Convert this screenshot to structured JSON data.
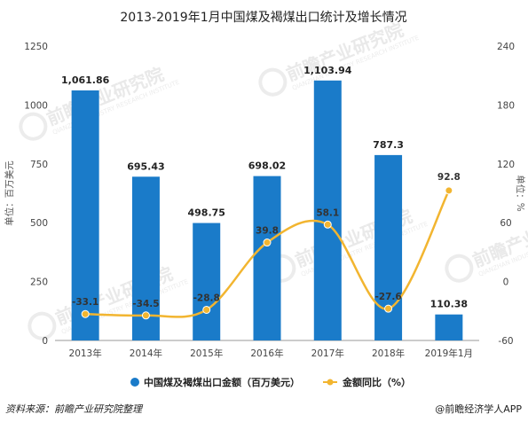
{
  "chart_data": {
    "type": "bar+line",
    "title": "2013-2019年1月中国煤及褐煤出口统计及增长情况",
    "categories": [
      "2013年",
      "2014年",
      "2015年",
      "2016年",
      "2017年",
      "2018年",
      "2019年1月"
    ],
    "series": [
      {
        "name": "中国煤及褐煤出口金额（百万美元）",
        "type": "bar",
        "axis": "left",
        "color": "#1a7bc9",
        "values": [
          1061.86,
          695.43,
          498.75,
          698.02,
          1103.94,
          787.3,
          110.38
        ],
        "labels": [
          "1,061.86",
          "695.43",
          "498.75",
          "698.02",
          "1,103.94",
          "787.3",
          "110.38"
        ]
      },
      {
        "name": "金额同比（%）",
        "type": "line",
        "axis": "right",
        "color": "#f2b530",
        "values": [
          -33.1,
          -34.5,
          -28.8,
          39.8,
          58.1,
          -27.6,
          92.8
        ],
        "labels": [
          "-33.1",
          "-34.5",
          "-28.8",
          "39.8",
          "58.1",
          "-27.6",
          "92.8"
        ]
      }
    ],
    "y_left": {
      "label": "单位：百万美元",
      "ylim": [
        0,
        1250
      ],
      "ticks": [
        "0",
        "250",
        "500",
        "750",
        "1000",
        "1250"
      ],
      "tick_values": [
        0,
        250,
        500,
        750,
        1000,
        1250
      ]
    },
    "y_right": {
      "label": "单位：%",
      "ylim": [
        -60,
        240
      ],
      "ticks": [
        "-60",
        "0",
        "60",
        "120",
        "180",
        "240"
      ],
      "tick_values": [
        -60,
        0,
        60,
        120,
        180,
        240
      ]
    },
    "grid": false,
    "legend": "bottom"
  },
  "footer": {
    "source": "资料来源：前瞻产业研究院整理",
    "brand": "@前瞻经济学人APP"
  },
  "watermark": {
    "text": "前瞻产业研究院",
    "sub": "QIANZHAN INDUSTRY RESEARCH INSTITUTE"
  }
}
